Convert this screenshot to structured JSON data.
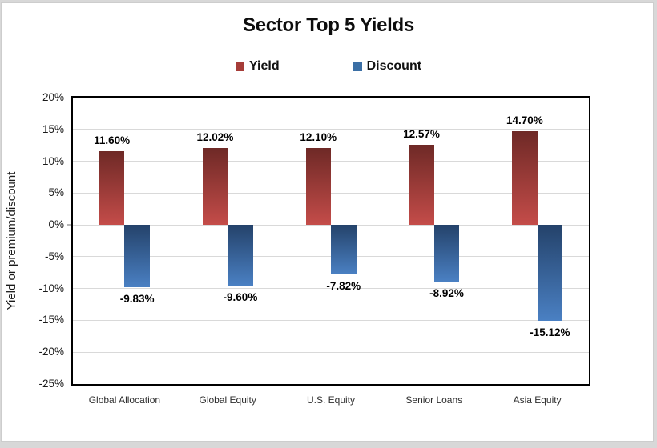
{
  "chart_data": {
    "type": "bar",
    "title": "Sector Top 5 Yields",
    "ylabel": "Yield or premium/discount",
    "xlabel": "",
    "categories": [
      "Global Allocation",
      "Global Equity",
      "U.S. Equity",
      "Senior Loans",
      "Asia Equity"
    ],
    "series": [
      {
        "name": "Yield",
        "values": [
          11.6,
          12.02,
          12.1,
          12.57,
          14.7
        ],
        "labels": [
          "11.60%",
          "12.02%",
          "12.10%",
          "12.57%",
          "14.70%"
        ],
        "bar_gradient_top": "#6E2926",
        "bar_gradient_bottom": "#C44C49",
        "legend_color": "#A63C38"
      },
      {
        "name": "Discount",
        "values": [
          -9.83,
          -9.6,
          -7.82,
          -8.92,
          -15.12
        ],
        "labels": [
          "-9.83%",
          "-9.60%",
          "-7.82%",
          "-8.92%",
          "-15.12%"
        ],
        "bar_gradient_top": "#24426A",
        "bar_gradient_bottom": "#4A80C3",
        "legend_color": "#3B6FA5"
      }
    ],
    "ylim": [
      -25,
      20
    ],
    "ytick_step": 5,
    "ytick_labels": [
      "20%",
      "15%",
      "10%",
      "5%",
      "0%",
      "-5%",
      "-10%",
      "-15%",
      "-20%",
      "-25%"
    ],
    "grid": true,
    "gridline_color": "#D9D9D9",
    "plot_border_color": "#000000",
    "legend_position": "top"
  }
}
